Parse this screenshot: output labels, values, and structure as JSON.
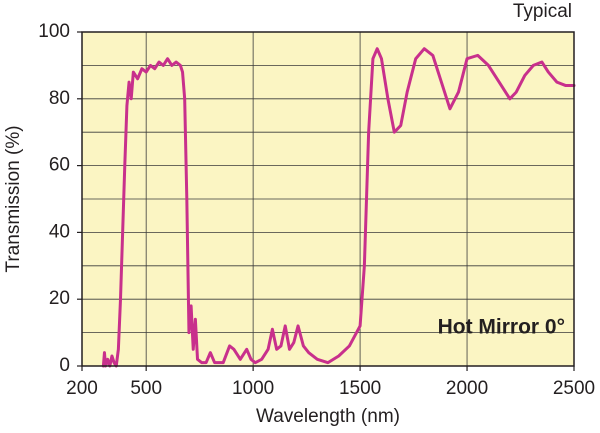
{
  "chart_data": {
    "type": "line",
    "title": "Typical",
    "annotation": "Hot Mirror 0°",
    "x_label": "Wavelength (nm)",
    "y_label": "Transmission (%)",
    "x": [
      300,
      305,
      310,
      320,
      330,
      340,
      350,
      360,
      370,
      380,
      390,
      400,
      410,
      420,
      430,
      440,
      460,
      480,
      500,
      520,
      540,
      560,
      580,
      600,
      620,
      640,
      660,
      670,
      680,
      690,
      700,
      710,
      720,
      730,
      740,
      760,
      780,
      800,
      820,
      860,
      890,
      910,
      940,
      970,
      990,
      1010,
      1040,
      1070,
      1090,
      1110,
      1130,
      1150,
      1170,
      1190,
      1210,
      1235,
      1260,
      1300,
      1350,
      1400,
      1450,
      1500,
      1520,
      1540,
      1560,
      1580,
      1600,
      1630,
      1660,
      1690,
      1720,
      1760,
      1800,
      1840,
      1880,
      1920,
      1960,
      2000,
      2050,
      2100,
      2150,
      2200,
      2230,
      2270,
      2310,
      2350,
      2380,
      2420,
      2460,
      2500
    ],
    "series": [
      {
        "color": "#c8308c",
        "values": [
          0,
          4,
          0,
          2,
          0,
          3,
          1,
          0,
          5,
          20,
          40,
          60,
          78,
          85,
          80,
          88,
          86,
          89,
          88,
          90,
          89,
          91,
          90,
          92,
          90,
          91,
          90,
          88,
          80,
          50,
          10,
          18,
          5,
          14,
          2,
          1,
          1,
          4,
          1,
          1,
          6,
          5,
          2,
          5,
          2,
          1,
          2,
          5,
          11,
          5,
          6,
          12,
          5,
          7,
          12,
          6,
          4,
          2,
          1,
          3,
          6,
          12,
          30,
          70,
          92,
          95,
          92,
          80,
          70,
          72,
          82,
          92,
          95,
          93,
          85,
          77,
          82,
          92,
          93,
          90,
          85,
          80,
          82,
          87,
          90,
          91,
          88,
          85,
          84,
          84
        ]
      }
    ],
    "xlim": [
      200,
      2500
    ],
    "ylim": [
      0,
      100
    ],
    "xticks": [
      200,
      500,
      1000,
      1500,
      2000,
      2500
    ],
    "yticks": [
      0,
      20,
      40,
      60,
      80,
      100
    ],
    "y_minor_ticks": [
      10,
      30,
      50,
      70,
      90
    ],
    "grid": true,
    "background": "#fbf5c3"
  }
}
